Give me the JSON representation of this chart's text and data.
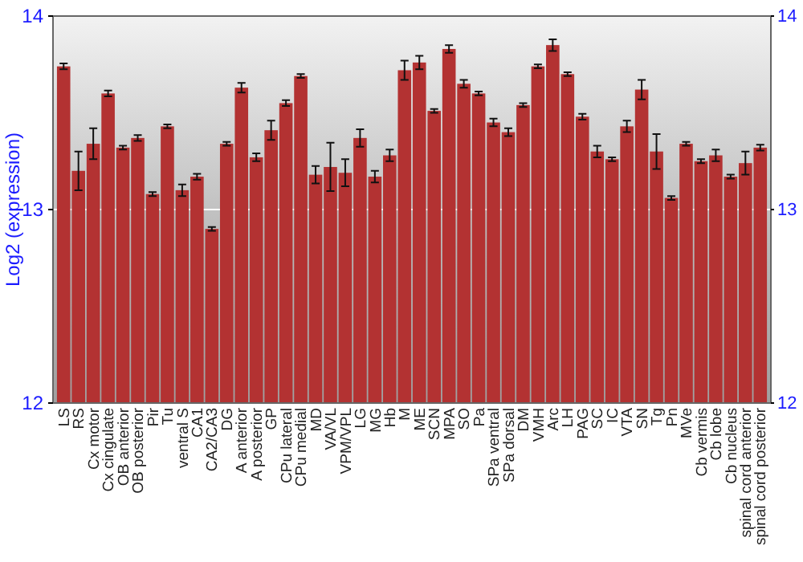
{
  "chart_data": {
    "type": "bar",
    "ylabel": "Log2 (expression)",
    "categories": [
      "LS",
      "RS",
      "Cx motor",
      "Cx cingulate",
      "OB anterior",
      "OB posterior",
      "Pir",
      "Tu",
      "ventral S",
      "CA1",
      "CA2/CA3",
      "DG",
      "A anterior",
      "A posterior",
      "GP",
      "CPu lateral",
      "CPu medial",
      "MD",
      "VA/VL",
      "VPM/VPL",
      "LG",
      "MG",
      "Hb",
      "M",
      "ME",
      "SCN",
      "MPA",
      "SO",
      "Pa",
      "SPa ventral",
      "SPa dorsal",
      "DM",
      "VMH",
      "Arc",
      "LH",
      "PAG",
      "SC",
      "IC",
      "VTA",
      "SN",
      "Tg",
      "Pn",
      "MVe",
      "Cb vermis",
      "Cb lobe",
      "Cb nucleus",
      "spinal cord anterior",
      "spinal cord posterior"
    ],
    "values": [
      13.74,
      13.2,
      13.34,
      13.6,
      13.32,
      13.37,
      13.08,
      13.43,
      13.1,
      13.17,
      12.9,
      13.34,
      13.63,
      13.27,
      13.41,
      13.55,
      13.69,
      13.18,
      13.22,
      13.19,
      13.37,
      13.17,
      13.28,
      13.72,
      13.76,
      13.51,
      13.83,
      13.65,
      13.6,
      13.45,
      13.4,
      13.54,
      13.74,
      13.85,
      13.7,
      13.48,
      13.3,
      13.26,
      13.43,
      13.62,
      13.3,
      13.06,
      13.34,
      13.25,
      13.28,
      13.17,
      13.24,
      13.32
    ],
    "errors": [
      0.015,
      0.1,
      0.08,
      0.015,
      0.01,
      0.015,
      0.01,
      0.01,
      0.03,
      0.015,
      0.01,
      0.01,
      0.025,
      0.02,
      0.05,
      0.015,
      0.01,
      0.045,
      0.125,
      0.07,
      0.045,
      0.03,
      0.03,
      0.05,
      0.035,
      0.01,
      0.02,
      0.02,
      0.01,
      0.02,
      0.02,
      0.01,
      0.01,
      0.03,
      0.01,
      0.015,
      0.03,
      0.01,
      0.03,
      0.05,
      0.09,
      0.01,
      0.01,
      0.01,
      0.03,
      0.01,
      0.06,
      0.015
    ],
    "color": "#b33232",
    "ylim": [
      12,
      14
    ],
    "yticks": [
      12,
      13,
      14
    ],
    "y2lim": [
      12,
      14
    ],
    "y2ticks": [
      12,
      13,
      14
    ],
    "grid": "y"
  }
}
